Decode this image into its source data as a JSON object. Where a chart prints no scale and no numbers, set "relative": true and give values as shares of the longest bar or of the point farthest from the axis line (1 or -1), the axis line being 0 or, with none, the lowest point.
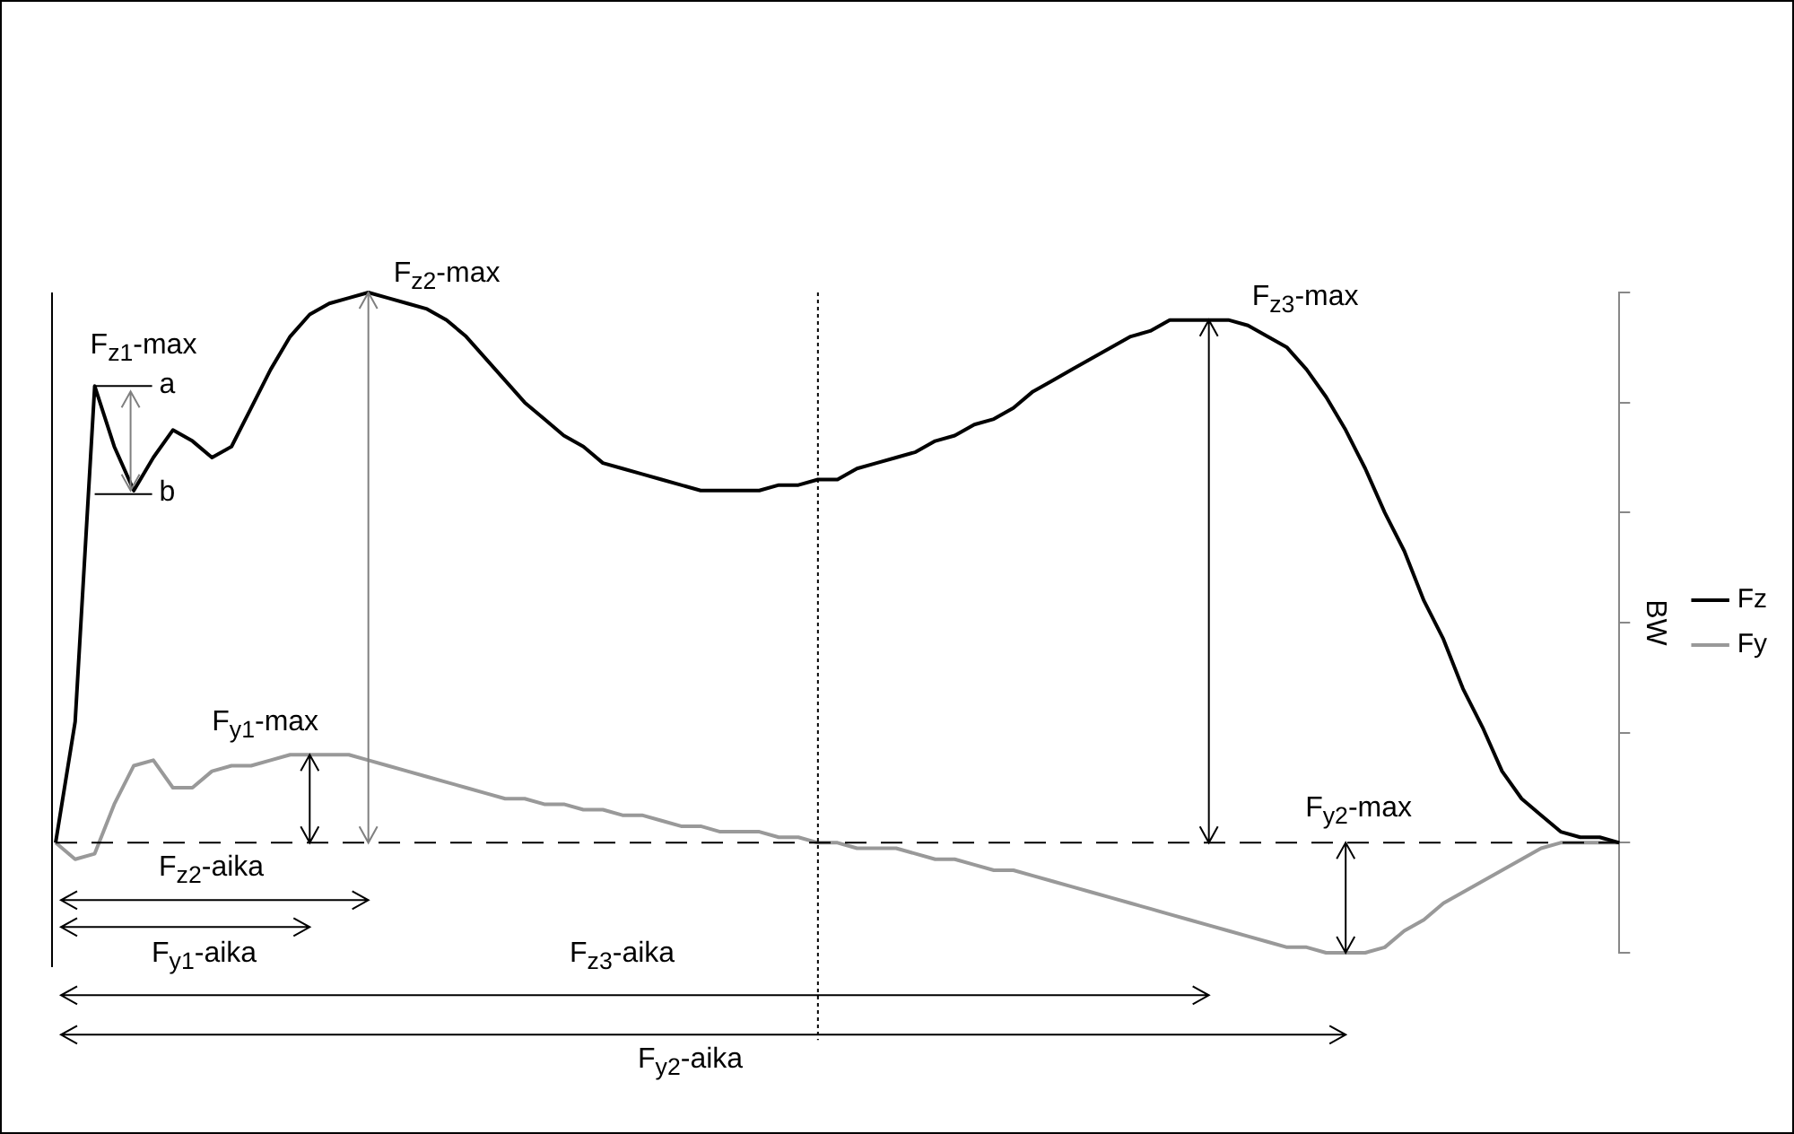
{
  "chart_data": {
    "type": "line",
    "relative": true,
    "ylabel": "BW",
    "legend": "right",
    "grid": false,
    "marker": "none",
    "line_style": "solid",
    "categories": [
      null,
      null,
      null,
      null,
      null,
      null,
      null,
      null,
      null,
      null,
      null,
      null,
      null,
      null,
      null,
      null,
      null,
      null,
      null,
      null,
      null,
      null,
      null,
      null,
      null,
      null,
      null,
      null,
      null,
      null,
      null,
      null,
      null,
      null,
      null,
      null,
      null,
      null,
      null,
      null,
      null,
      null,
      null,
      null,
      null,
      null,
      null,
      null,
      null,
      null,
      null,
      null,
      null,
      null,
      null,
      null,
      null,
      null,
      null,
      null,
      null,
      null,
      null,
      null,
      null,
      null,
      null,
      null,
      null,
      null,
      null,
      null,
      null,
      null,
      null,
      null,
      null,
      null,
      null,
      null,
      null
    ],
    "series": [
      {
        "name": "Fz",
        "color": "#000000",
        "values": [
          0,
          0.22,
          0.83,
          0.72,
          0.64,
          0.7,
          0.75,
          0.73,
          0.7,
          0.72,
          0.79,
          0.86,
          0.92,
          0.96,
          0.98,
          0.99,
          1.0,
          0.99,
          0.98,
          0.97,
          0.95,
          0.92,
          0.88,
          0.84,
          0.8,
          0.77,
          0.74,
          0.72,
          0.69,
          0.68,
          0.67,
          0.66,
          0.65,
          0.64,
          0.64,
          0.64,
          0.64,
          0.65,
          0.65,
          0.66,
          0.66,
          0.68,
          0.69,
          0.7,
          0.71,
          0.73,
          0.74,
          0.76,
          0.77,
          0.79,
          0.82,
          0.84,
          0.86,
          0.88,
          0.9,
          0.92,
          0.93,
          0.95,
          0.95,
          0.95,
          0.95,
          0.94,
          0.92,
          0.9,
          0.86,
          0.81,
          0.75,
          0.68,
          0.6,
          0.53,
          0.44,
          0.37,
          0.28,
          0.21,
          0.13,
          0.08,
          0.05,
          0.02,
          0.01,
          0.01,
          0
        ]
      },
      {
        "name": "Fy",
        "color": "#999999",
        "values": [
          0,
          -0.03,
          -0.02,
          0.07,
          0.14,
          0.15,
          0.1,
          0.1,
          0.13,
          0.14,
          0.14,
          0.15,
          0.16,
          0.16,
          0.16,
          0.16,
          0.15,
          0.14,
          0.13,
          0.12,
          0.11,
          0.1,
          0.09,
          0.08,
          0.08,
          0.07,
          0.07,
          0.06,
          0.06,
          0.05,
          0.05,
          0.04,
          0.03,
          0.03,
          0.02,
          0.02,
          0.02,
          0.01,
          0.01,
          0,
          0,
          -0.01,
          -0.01,
          -0.01,
          -0.02,
          -0.03,
          -0.03,
          -0.04,
          -0.05,
          -0.05,
          -0.06,
          -0.07,
          -0.08,
          -0.09,
          -0.1,
          -0.11,
          -0.12,
          -0.13,
          -0.14,
          -0.15,
          -0.16,
          -0.17,
          -0.18,
          -0.19,
          -0.19,
          -0.2,
          -0.2,
          -0.2,
          -0.19,
          -0.16,
          -0.14,
          -0.11,
          -0.09,
          -0.07,
          -0.05,
          -0.03,
          -0.01,
          0,
          0,
          0,
          0
        ]
      }
    ],
    "ref_lines": [
      {
        "axis": "y",
        "value": 0,
        "color": "#000000",
        "line_style": "dashed"
      }
    ],
    "annotations": [
      "F$_{z1}$-max",
      "a",
      "b",
      "F$_{z2}$-max",
      "F$_{z3}$-max",
      "F$_{y1}$-max",
      "F$_{y2}$-max",
      "F$_{z2}$-aika",
      "F$_{y1}$-aika",
      "F$_{z3}$-aika",
      "F$_{y2}$-aika"
    ]
  }
}
